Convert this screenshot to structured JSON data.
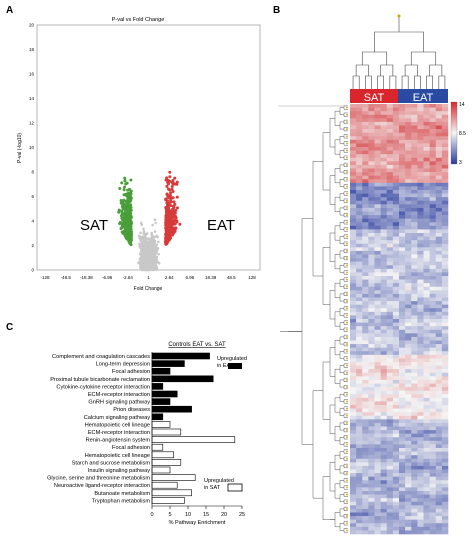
{
  "panels": {
    "a": "A",
    "b": "B",
    "c": "C"
  },
  "volcano": {
    "title": "P-val vs Fold Change",
    "xlabel": "Fold Change",
    "ylabel": "P-val (-log10)",
    "xticks": [
      "-128",
      "-48.5",
      "-18.38",
      "-6.96",
      "-2.64",
      "1",
      "2.64",
      "6.96",
      "18.38",
      "48.5",
      "128"
    ],
    "yticks": [
      "0",
      "2",
      "4",
      "6",
      "8",
      "10",
      "12",
      "14",
      "16",
      "18",
      "20"
    ],
    "left_group": "SAT",
    "right_group": "EAT",
    "colors": {
      "left": "#4a9e3a",
      "right": "#d63a3a",
      "ns": "#c8c8c8"
    }
  },
  "heatmap": {
    "groups": [
      "SAT",
      "EAT"
    ],
    "group_colors": {
      "SAT": "#d8262c",
      "EAT": "#2a4aa3"
    },
    "scale_ticks": [
      "14",
      "8.5",
      "3"
    ],
    "scale_colors": [
      "#d8262c",
      "#f5f5f5",
      "#2a3a9e"
    ]
  },
  "chart_data": {
    "type": "bar",
    "title": "Controls EAT vs. SAT",
    "xlabel": "% Pathway Enrichment",
    "xlim": [
      0,
      25
    ],
    "xticks": [
      "0",
      "5",
      "10",
      "15",
      "20",
      "25"
    ],
    "legend_eat": "Upregulated in EAT",
    "legend_sat": "Upregulated in SAT",
    "categories": [
      "Complement and coagulation cascades",
      "Long-term depression",
      "Focal adhesion",
      "Proximal tubule bicarbonate reclamation",
      "Cytokine-cytokine receptor interaction",
      "ECM-receptor interaction",
      "GnRH signaling pathway",
      "Prion diseases",
      "Calcium signaling pathway",
      "Hematopoietic cell lineage",
      "ECM-receptor interaction",
      "Renin-angiotensin system",
      "Focal adhesion",
      "Hematopoietic cell lineage",
      "Starch and sucrose metabolism",
      "Insulin signaling pathway",
      "Glycine, serine and threonine metabolism",
      "Neuroactive ligand-receptor interaction",
      "Butanoate metabolism",
      "Tryptophan metabolism"
    ],
    "values": [
      16,
      9,
      5,
      17,
      3,
      7,
      5,
      11,
      3,
      5,
      8,
      23,
      3,
      6,
      8,
      5,
      12,
      7,
      11,
      9
    ],
    "groups": [
      "EAT",
      "EAT",
      "EAT",
      "EAT",
      "EAT",
      "EAT",
      "EAT",
      "EAT",
      "EAT",
      "SAT",
      "SAT",
      "SAT",
      "SAT",
      "SAT",
      "SAT",
      "SAT",
      "SAT",
      "SAT",
      "SAT",
      "SAT"
    ]
  }
}
